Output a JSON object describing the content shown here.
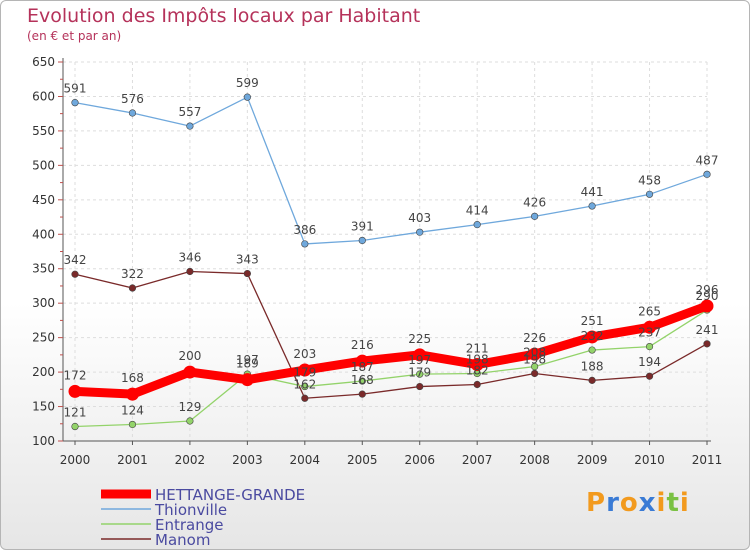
{
  "chart_data": {
    "type": "line",
    "title": "Evolution des Impôts locaux par Habitant",
    "subtitle": "(en € et par an)",
    "xlabel": "",
    "ylabel": "",
    "ylim": [
      100,
      650
    ],
    "yticks": [
      100,
      150,
      200,
      250,
      300,
      350,
      400,
      450,
      500,
      550,
      600,
      650
    ],
    "x": [
      "2000",
      "2001",
      "2002",
      "2003",
      "2004",
      "2005",
      "2006",
      "2007",
      "2008",
      "2009",
      "2010",
      "2011"
    ],
    "series": [
      {
        "name": "HETTANGE-GRANDE",
        "color": "#ff0000",
        "values": [
          172,
          168,
          200,
          189,
          203,
          216,
          225,
          211,
          226,
          251,
          265,
          296
        ]
      },
      {
        "name": "Thionville",
        "color": "#6fa8dc",
        "values": [
          591,
          576,
          557,
          599,
          386,
          391,
          403,
          414,
          426,
          441,
          458,
          487
        ]
      },
      {
        "name": "Entrange",
        "color": "#93d36a",
        "values": [
          121,
          124,
          129,
          197,
          179,
          187,
          197,
          198,
          208,
          232,
          237,
          290
        ]
      },
      {
        "name": "Manom",
        "color": "#7a2a2a",
        "values": [
          342,
          322,
          346,
          343,
          162,
          168,
          179,
          182,
          198,
          188,
          194,
          241
        ]
      }
    ]
  },
  "logo": {
    "text": "Proxiti",
    "letters": [
      "P",
      "r",
      "o",
      "x",
      "i",
      "t",
      "i"
    ],
    "colors": [
      "#f29a1e",
      "#3a7bd5",
      "#f29a1e",
      "#3a7bd5",
      "#f29a1e",
      "#7ac143",
      "#f29a1e"
    ]
  }
}
